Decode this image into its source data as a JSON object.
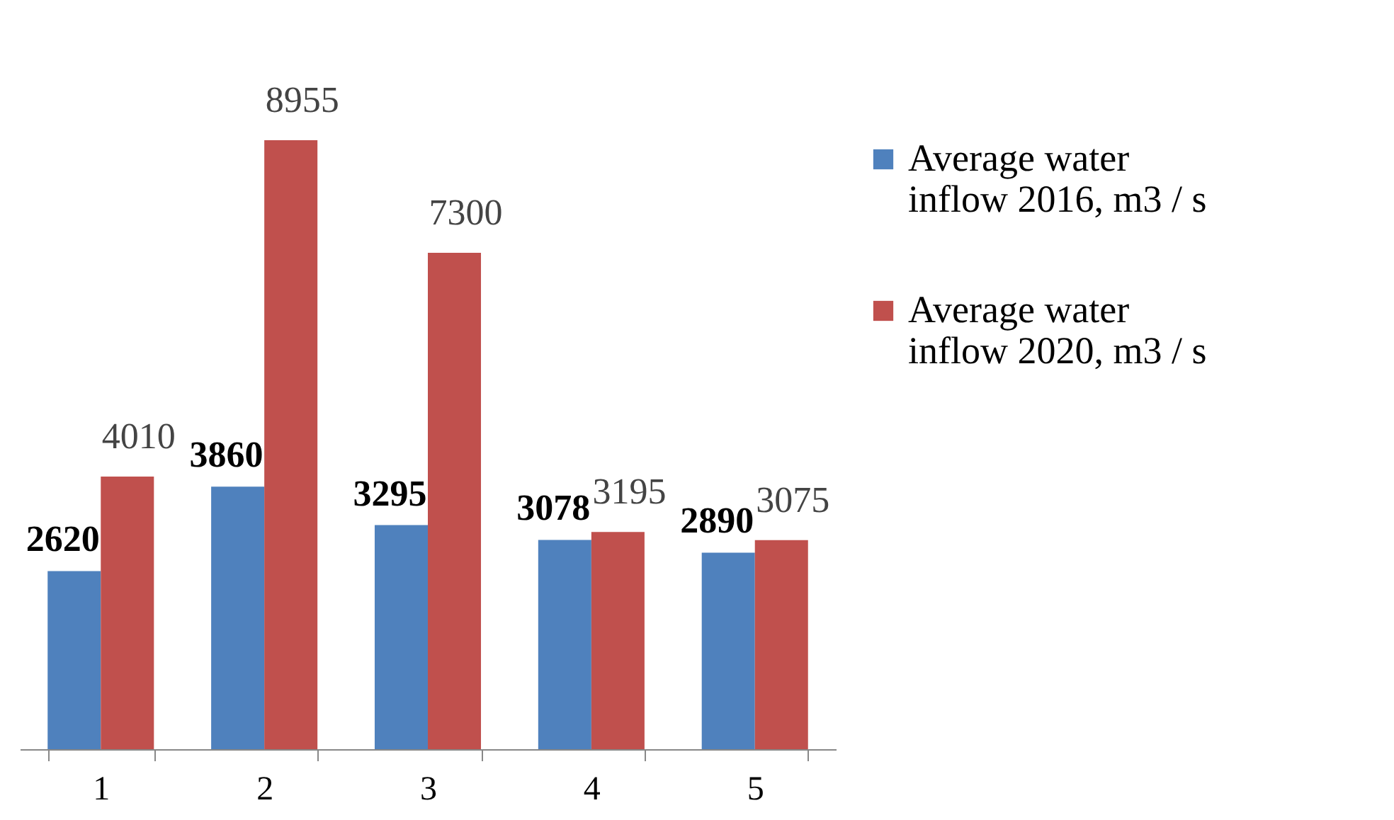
{
  "chart_data": {
    "type": "bar",
    "categories": [
      "1",
      "2",
      "3",
      "4",
      "5"
    ],
    "series": [
      {
        "name": "Average water inflow 2016, m3 / s",
        "color": "#4f81bd",
        "values": [
          2620,
          3860,
          3295,
          3078,
          2890
        ]
      },
      {
        "name": "Average water inflow 2020, m3 / s",
        "color": "#c0504d",
        "values": [
          4010,
          8955,
          7300,
          3195,
          3075
        ]
      }
    ],
    "data_labels": true,
    "legend": "right",
    "grid": false
  }
}
